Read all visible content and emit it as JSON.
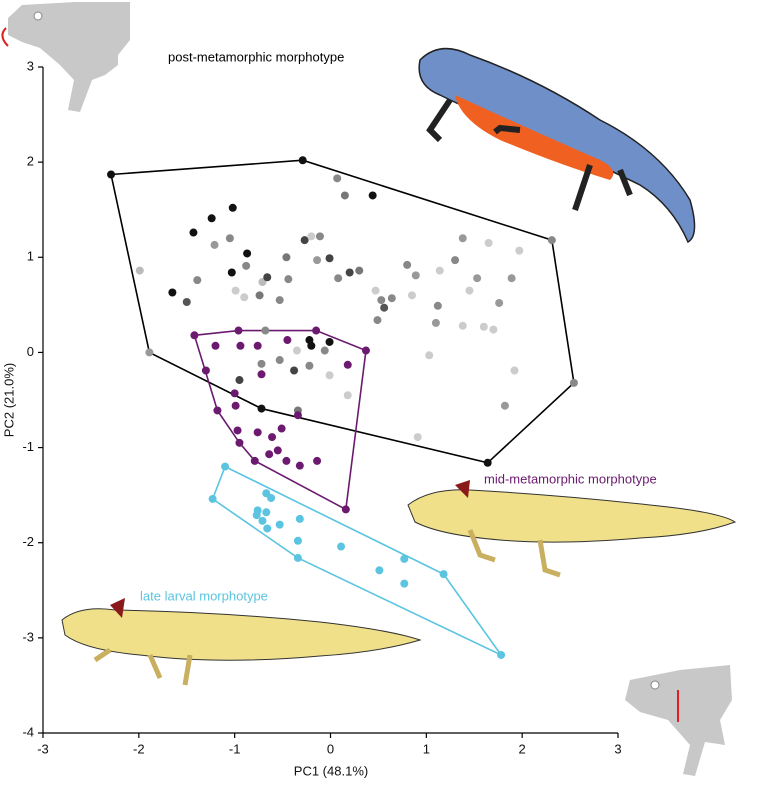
{
  "chart_data": {
    "type": "scatter",
    "xlabel": "PC1 (48.1%)",
    "ylabel": "PC2 (21.0%)",
    "xlim": [
      -3,
      3
    ],
    "ylim": [
      -4,
      3
    ],
    "xticks": [
      -3,
      -2,
      -1,
      0,
      1,
      2,
      3
    ],
    "yticks": [
      -4,
      -3,
      -2,
      -1,
      0,
      1,
      2,
      3
    ],
    "hull": true,
    "series": [
      {
        "name": "post-metamorphic morphotype",
        "color": "#000000",
        "x": [
          -2.29,
          -0.29,
          2.31,
          2.54,
          1.64,
          -0.72,
          -1.89,
          -1.99,
          -1.65,
          -1.5,
          -1.39,
          -1.24,
          -1.43,
          -1.02,
          -1.21,
          -1.05,
          -1.03,
          -0.87,
          -0.88,
          -0.99,
          -0.9,
          -0.74,
          -0.71,
          -0.53,
          -0.66,
          -0.44,
          -0.46,
          -0.27,
          -0.2,
          -0.11,
          -0.14,
          -0.01,
          0.07,
          0.15,
          0.08,
          0.2,
          0.3,
          0.44,
          0.47,
          0.49,
          0.53,
          0.56,
          0.64,
          0.8,
          0.85,
          0.89,
          1.1,
          1.12,
          1.14,
          1.3,
          1.38,
          1.38,
          1.45,
          1.53,
          1.65,
          1.6,
          1.7,
          1.89,
          1.97,
          1.76,
          1.82,
          1.92,
          1.03,
          0.91,
          -0.22,
          -0.2,
          -0.01,
          -0.06,
          -0.22,
          -0.38,
          -0.53,
          -0.72,
          -0.95,
          -0.34,
          -0.01,
          0.18,
          -0.68,
          -0.35
        ],
        "y": [
          1.87,
          2.02,
          1.18,
          -0.32,
          -1.16,
          -0.59,
          0.0,
          0.86,
          0.63,
          0.53,
          0.76,
          1.41,
          1.26,
          1.52,
          1.13,
          1.2,
          0.84,
          1.04,
          0.91,
          0.65,
          0.58,
          0.6,
          0.74,
          0.55,
          0.79,
          0.77,
          1.0,
          1.18,
          1.22,
          1.22,
          0.97,
          0.99,
          1.83,
          1.65,
          0.78,
          0.84,
          0.86,
          1.65,
          0.65,
          0.34,
          0.55,
          0.47,
          0.57,
          0.92,
          0.6,
          0.81,
          0.31,
          0.49,
          0.86,
          0.97,
          1.2,
          0.28,
          0.65,
          0.78,
          1.15,
          0.27,
          0.24,
          0.78,
          1.07,
          0.52,
          -0.56,
          -0.19,
          -0.03,
          -0.89,
          0.13,
          0.07,
          0.11,
          0.02,
          -0.14,
          -0.19,
          -0.08,
          -0.12,
          -0.29,
          -0.61,
          -0.24,
          -0.45,
          0.23,
          0.02
        ],
        "colors": [
          "#111",
          "#111",
          "#888",
          "#888",
          "#111",
          "#111",
          "#999",
          "#bbb",
          "#111",
          "#555",
          "#888",
          "#111",
          "#111",
          "#111",
          "#999",
          "#888",
          "#111",
          "#111",
          "#888",
          "#ccc",
          "#ccc",
          "#777",
          "#bbb",
          "#888",
          "#444",
          "#888",
          "#777",
          "#444",
          "#ccc",
          "#888",
          "#999",
          "#444",
          "#888",
          "#777",
          "#888",
          "#444",
          "#777",
          "#111",
          "#ccc",
          "#888",
          "#888",
          "#555",
          "#888",
          "#888",
          "#ccc",
          "#999",
          "#999",
          "#888",
          "#ccc",
          "#888",
          "#999",
          "#ccc",
          "#ccc",
          "#999",
          "#ccc",
          "#ccc",
          "#ccc",
          "#999",
          "#ccc",
          "#999",
          "#999",
          "#ccc",
          "#ccc",
          "#ccc",
          "#111",
          "#111",
          "#111",
          "#888",
          "#888",
          "#444",
          "#888",
          "#888",
          "#444",
          "#777",
          "#ccc",
          "#ccc",
          "#888",
          "#ccc"
        ]
      },
      {
        "name": "mid-metamorphic morphotype",
        "color": "#6b1a6f",
        "x": [
          -1.42,
          -0.96,
          -0.15,
          0.37,
          0.16,
          -0.95,
          -1.3,
          -1.2,
          -0.94,
          -0.76,
          -0.45,
          0.18,
          -0.72,
          -0.99,
          -1.18,
          -0.97,
          -0.76,
          -0.61,
          -0.55,
          -0.34,
          -0.46,
          -0.32,
          -0.14,
          -0.51,
          -0.79,
          -0.64,
          -1.0
        ],
        "y": [
          0.18,
          0.23,
          0.23,
          0.02,
          -1.65,
          -0.95,
          -0.19,
          0.07,
          0.07,
          0.07,
          0.13,
          -0.13,
          -0.23,
          -0.56,
          -0.61,
          -0.82,
          -0.84,
          -0.89,
          -1.03,
          -0.66,
          -1.14,
          -1.19,
          -1.14,
          -0.8,
          -1.14,
          -1.07,
          -0.43
        ]
      },
      {
        "name": "late larval morphotype",
        "color": "#5bc4e0",
        "x": [
          -1.1,
          -1.23,
          -0.34,
          1.18,
          1.78,
          -0.67,
          -0.62,
          -0.76,
          -0.67,
          -0.71,
          -0.77,
          -0.66,
          -0.53,
          -0.32,
          -0.34,
          0.11,
          0.51,
          0.77,
          0.77
        ],
        "y": [
          -1.2,
          -1.54,
          -2.16,
          -2.33,
          -3.18,
          -1.48,
          -1.53,
          -1.66,
          -1.68,
          -1.77,
          -1.71,
          -1.85,
          -1.81,
          -1.75,
          -1.98,
          -2.04,
          -2.29,
          -2.17,
          -2.43
        ]
      }
    ]
  }
}
